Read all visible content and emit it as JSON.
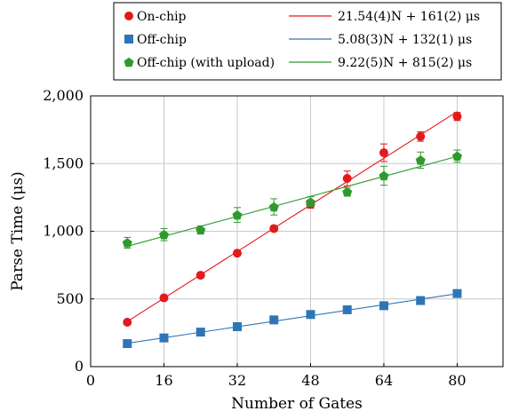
{
  "chart_data": {
    "type": "scatter",
    "xlabel": "Number of Gates",
    "ylabel": "Parse Time (μs)",
    "xlim": [
      0,
      90
    ],
    "ylim": [
      0,
      2000
    ],
    "xticks": [
      0,
      16,
      32,
      48,
      64,
      80
    ],
    "yticks": [
      0,
      500,
      1000,
      1500,
      2000
    ],
    "xtick_labels": [
      "0",
      "16",
      "32",
      "48",
      "64",
      "80"
    ],
    "ytick_labels": [
      "0",
      "500",
      "1,000",
      "1,500",
      "2,000"
    ],
    "grid": true,
    "legend_position": "top",
    "series": [
      {
        "name": "On-chip",
        "marker": "circle",
        "color": "#e31a1c",
        "x": [
          8,
          16,
          24,
          32,
          40,
          48,
          56,
          64,
          72,
          80
        ],
        "y": [
          328,
          508,
          675,
          838,
          1020,
          1200,
          1390,
          1580,
          1700,
          1848
        ],
        "err": [
          15,
          12,
          15,
          12,
          20,
          30,
          55,
          65,
          35,
          30
        ],
        "fit": {
          "label": "21.54(4)N + 161(2) μs",
          "slope": 21.54,
          "intercept": 161
        }
      },
      {
        "name": "Off-chip",
        "marker": "square",
        "color": "#2e75b6",
        "x": [
          8,
          16,
          24,
          32,
          40,
          48,
          56,
          64,
          72,
          80
        ],
        "y": [
          170,
          212,
          255,
          295,
          345,
          385,
          420,
          450,
          488,
          540
        ],
        "err": [
          12,
          10,
          10,
          10,
          10,
          10,
          10,
          12,
          15,
          15
        ],
        "fit": {
          "label": "5.08(3)N + 132(1) μs",
          "slope": 5.08,
          "intercept": 132
        }
      },
      {
        "name": "Off-chip (with upload)",
        "marker": "pentagon",
        "color": "#2e9a2e",
        "x": [
          8,
          16,
          24,
          32,
          40,
          48,
          56,
          64,
          72,
          80
        ],
        "y": [
          915,
          975,
          1010,
          1120,
          1180,
          1215,
          1290,
          1410,
          1525,
          1555
        ],
        "err": [
          40,
          45,
          30,
          55,
          60,
          40,
          30,
          70,
          60,
          45
        ],
        "fit": {
          "label": "9.22(5)N + 815(2) μs",
          "slope": 9.22,
          "intercept": 815
        }
      }
    ]
  }
}
